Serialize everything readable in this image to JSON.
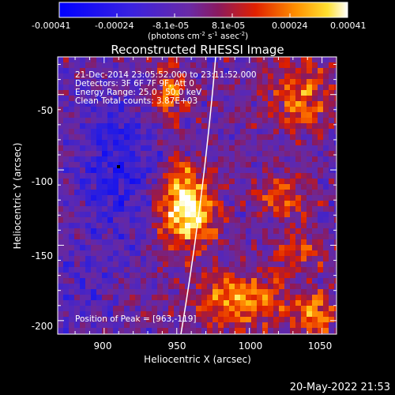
{
  "colorbar": {
    "ticks": [
      "-0.00041",
      "-0.00024",
      "-8.1e-05",
      "8.1e-05",
      "0.00024",
      "0.00041"
    ],
    "units_main": "(photons cm",
    "units_exp1": "-2",
    "units_mid": " s",
    "units_exp2": "-1",
    "units_end": " asec",
    "units_exp3": "-2",
    "units_close": ")"
  },
  "title": "Reconstructed RHESSI Image",
  "info": {
    "line1": "21-Dec-2014 23:05:52.000 to 23:11:52.000",
    "line2": "Detectors: 3F 6F 7F 9F, Att 0",
    "line3": "Energy Range: 25.0 - 50.0 keV",
    "line4": "Clean      Total counts: 3.87E+03"
  },
  "peak_text": "Position of Peak = [963,-119]",
  "axes": {
    "xlabel": "Heliocentric X (arcsec)",
    "ylabel": "Heliocentric Y (arcsec)",
    "xticks": [
      "900",
      "950",
      "1000",
      "1050"
    ],
    "yticks": [
      "-50",
      "-100",
      "-150",
      "-200"
    ]
  },
  "timestamp": "20-May-2022 21:53",
  "map": {
    "x_range": [
      868,
      1060
    ],
    "y_range": [
      -209,
      -25
    ],
    "colors": {
      "negative": "#1010ff",
      "zero": "#6a2aa6",
      "positive": "#ffffff"
    }
  }
}
